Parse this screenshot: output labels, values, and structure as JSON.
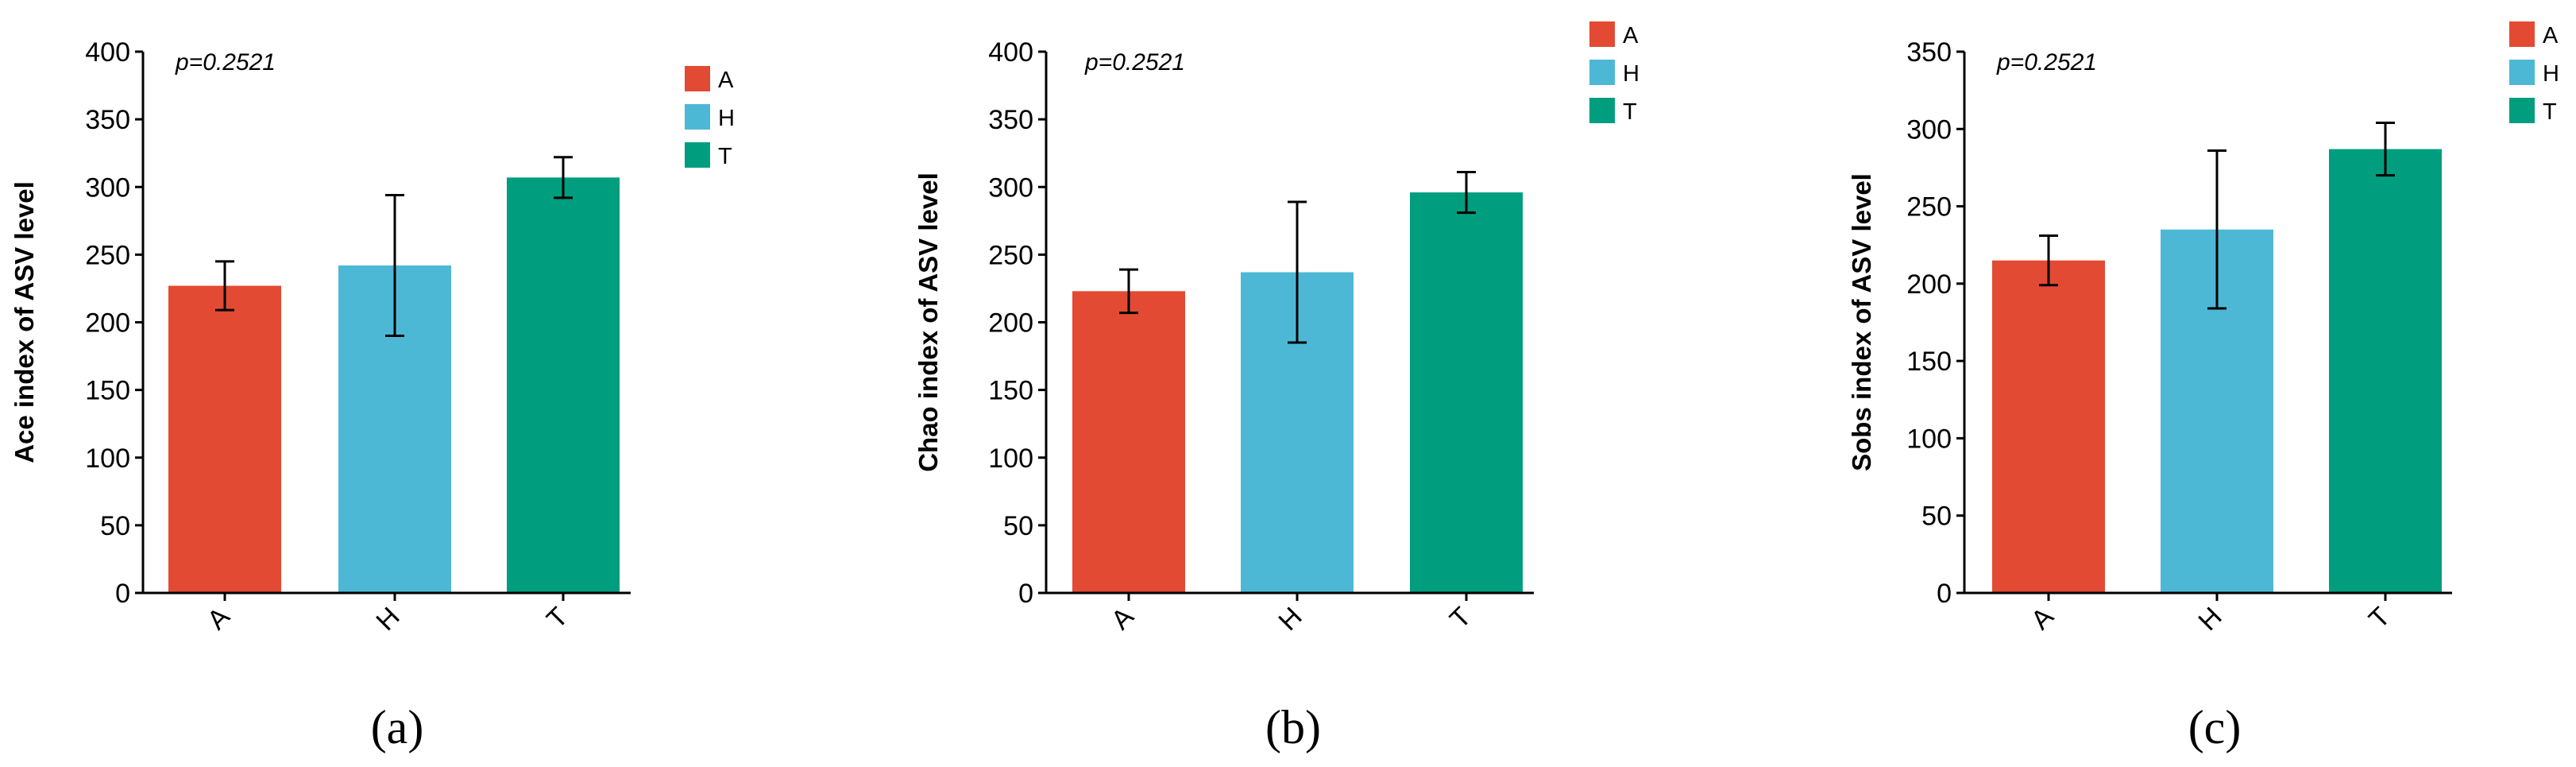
{
  "chart_data": [
    {
      "type": "bar",
      "panel_label": "(a)",
      "ylabel": "Ace index of ASV level",
      "annotation": "p=0.2521",
      "categories": [
        "A",
        "H",
        "T"
      ],
      "values": [
        227,
        242,
        307
      ],
      "errors": [
        18,
        52,
        15
      ],
      "ylim": [
        0,
        400
      ],
      "yticks": [
        0,
        50,
        100,
        150,
        200,
        250,
        300,
        350,
        400
      ],
      "legend": [
        "A",
        "H",
        "T"
      ],
      "legend_position": "top-right"
    },
    {
      "type": "bar",
      "panel_label": "(b)",
      "ylabel": "Chao index of ASV level",
      "annotation": "p=0.2521",
      "categories": [
        "A",
        "H",
        "T"
      ],
      "values": [
        223,
        237,
        296
      ],
      "errors": [
        16,
        52,
        15
      ],
      "ylim": [
        0,
        400
      ],
      "yticks": [
        0,
        50,
        100,
        150,
        200,
        250,
        300,
        350,
        400
      ],
      "legend": [
        "A",
        "H",
        "T"
      ],
      "legend_position": "top-right"
    },
    {
      "type": "bar",
      "panel_label": "(c)",
      "ylabel": "Sobs index of ASV level",
      "annotation": "p=0.2521",
      "categories": [
        "A",
        "H",
        "T"
      ],
      "values": [
        215,
        235,
        287
      ],
      "errors": [
        16,
        51,
        17
      ],
      "ylim": [
        0,
        350
      ],
      "yticks": [
        0,
        50,
        100,
        150,
        200,
        250,
        300,
        350
      ],
      "legend": [
        "A",
        "H",
        "T"
      ],
      "legend_position": "top-right"
    }
  ],
  "colors": {
    "A": "#E34A33",
    "H": "#4DB8D6",
    "T": "#009E7E"
  }
}
